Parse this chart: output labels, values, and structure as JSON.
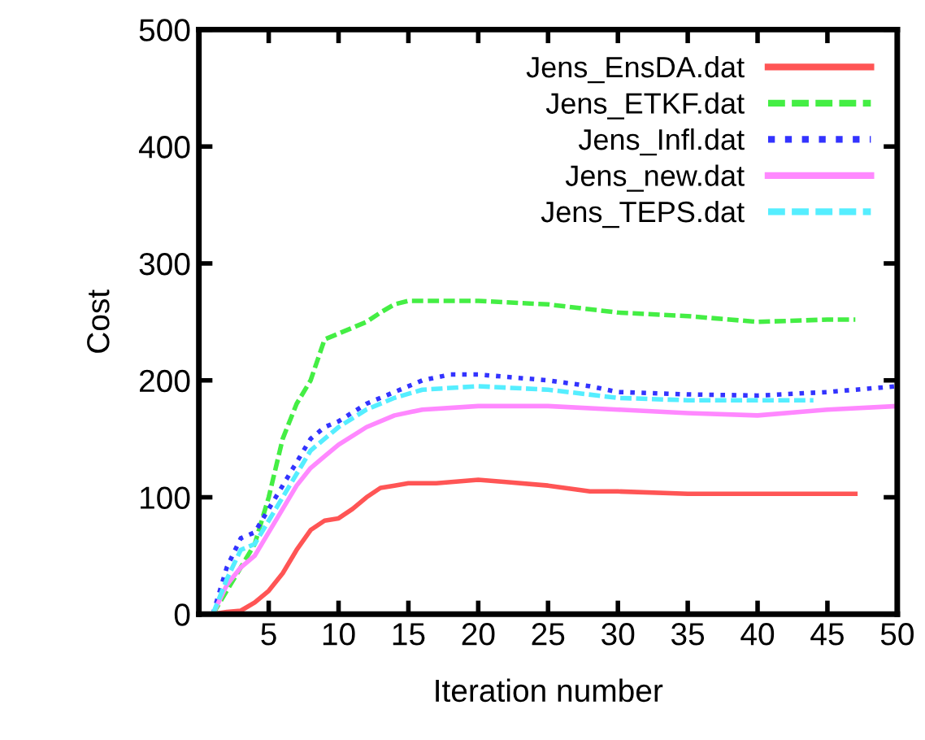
{
  "chart_data": {
    "type": "line",
    "xlabel": "Iteration number",
    "ylabel": "Cost",
    "xlim": [
      0,
      50
    ],
    "xticks": [
      5,
      10,
      15,
      20,
      25,
      30,
      35,
      40,
      45,
      50
    ],
    "ylim": [
      0,
      500
    ],
    "yticks": [
      0,
      100,
      200,
      300,
      400,
      500
    ],
    "grid": false,
    "legend": "top right",
    "marker": "none",
    "series": [
      {
        "name": "Jens_EnsDA.dat",
        "color": "#ff5555",
        "line_style": "solid",
        "x": [
          1,
          2,
          3,
          4,
          5,
          6,
          7,
          8,
          9,
          10,
          11,
          12,
          13,
          14,
          15,
          17,
          20,
          22,
          25,
          28,
          30,
          35,
          40,
          45,
          47
        ],
        "values": [
          0,
          2,
          3,
          10,
          20,
          35,
          55,
          72,
          80,
          82,
          90,
          100,
          108,
          110,
          112,
          112,
          115,
          113,
          110,
          105,
          105,
          103,
          103,
          103,
          103
        ]
      },
      {
        "name": "Jens_ETKF.dat",
        "color": "#44ee44",
        "line_style": "dashed",
        "x": [
          1,
          2,
          3,
          4,
          5,
          6,
          7,
          8,
          9,
          10,
          11,
          12,
          13,
          14,
          15,
          20,
          25,
          30,
          35,
          40,
          45,
          47
        ],
        "values": [
          0,
          20,
          40,
          60,
          100,
          150,
          180,
          200,
          235,
          240,
          245,
          250,
          258,
          265,
          268,
          268,
          265,
          258,
          255,
          250,
          252,
          252
        ]
      },
      {
        "name": "Jens_Infl.dat",
        "color": "#3333ff",
        "line_style": "dotted",
        "x": [
          1,
          2,
          3,
          4,
          5,
          6,
          7,
          8,
          9,
          10,
          12,
          14,
          16,
          18,
          20,
          22,
          25,
          28,
          30,
          35,
          40,
          45,
          50
        ],
        "values": [
          0,
          40,
          65,
          70,
          90,
          110,
          130,
          150,
          160,
          165,
          180,
          190,
          200,
          205,
          205,
          203,
          200,
          195,
          190,
          188,
          187,
          190,
          195
        ]
      },
      {
        "name": "Jens_new.dat",
        "color": "#ff88ff",
        "line_style": "solid",
        "x": [
          1,
          2,
          3,
          4,
          5,
          6,
          7,
          8,
          9,
          10,
          12,
          14,
          16,
          20,
          25,
          30,
          35,
          40,
          45,
          50
        ],
        "values": [
          0,
          25,
          40,
          50,
          70,
          90,
          110,
          125,
          135,
          145,
          160,
          170,
          175,
          178,
          178,
          175,
          172,
          170,
          175,
          178
        ]
      },
      {
        "name": "Jens_TEPS.dat",
        "color": "#55eeff",
        "line_style": "dashed",
        "x": [
          1,
          2,
          3,
          4,
          5,
          6,
          7,
          8,
          9,
          10,
          12,
          14,
          16,
          20,
          25,
          30,
          35,
          40,
          44
        ],
        "values": [
          0,
          30,
          55,
          60,
          80,
          100,
          120,
          140,
          150,
          160,
          175,
          185,
          192,
          195,
          192,
          185,
          183,
          183,
          183
        ]
      }
    ]
  }
}
